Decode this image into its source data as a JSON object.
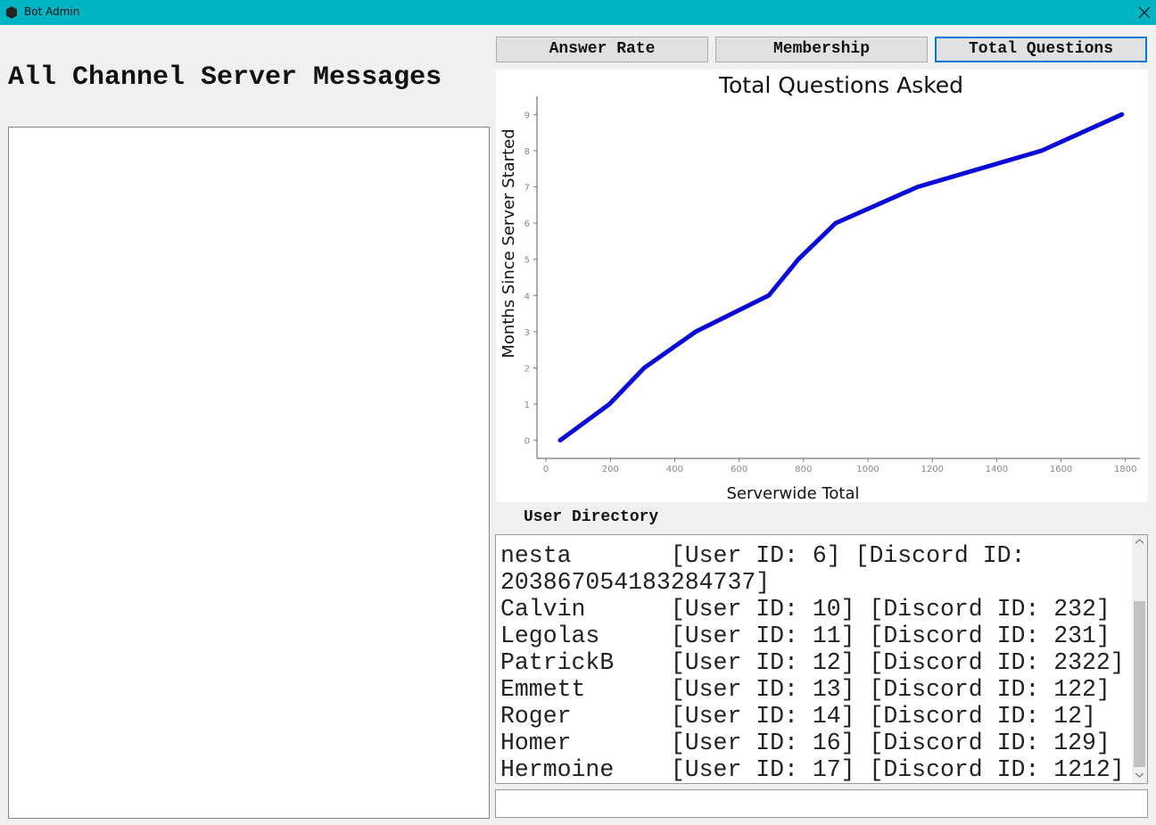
{
  "window": {
    "title": "Bot Admin"
  },
  "messages": {
    "heading": "All Channel Server Messages"
  },
  "tabs": [
    "Answer Rate",
    "Membership",
    "Total Questions"
  ],
  "chart_data": {
    "type": "line",
    "title": "Total Questions Asked",
    "x_label": "Serverwide Total",
    "y_label": "Months Since Server Started",
    "x": [
      44,
      197,
      305,
      465,
      692,
      784,
      900,
      1155,
      1540,
      1789
    ],
    "values": [
      0,
      1,
      2,
      3,
      4,
      5,
      6,
      7,
      8,
      9
    ],
    "color": "#0a0ad8",
    "xlim": [
      -28,
      1845
    ],
    "ylim": [
      -0.5,
      9.5
    ],
    "xticks": [
      0,
      200,
      400,
      600,
      800,
      1000,
      1200,
      1400,
      1600,
      1800
    ],
    "yticks": [
      0,
      1,
      2,
      3,
      4,
      5,
      6,
      7,
      8,
      9
    ],
    "grid": false
  },
  "directory": {
    "label": "User Directory",
    "rows": [
      "nesta       [User ID: 6] [Discord ID: 203867054183284737]",
      "Calvin      [User ID: 10] [Discord ID: 232]",
      "Legolas     [User ID: 11] [Discord ID: 231]",
      "PatrickB    [User ID: 12] [Discord ID: 2322]",
      "Emmett      [User ID: 13] [Discord ID: 122]",
      "Roger       [User ID: 14] [Discord ID: 12]",
      "Homer       [User ID: 16] [Discord ID: 129]",
      "Hermoine    [User ID: 17] [Discord ID: 1212]"
    ]
  }
}
